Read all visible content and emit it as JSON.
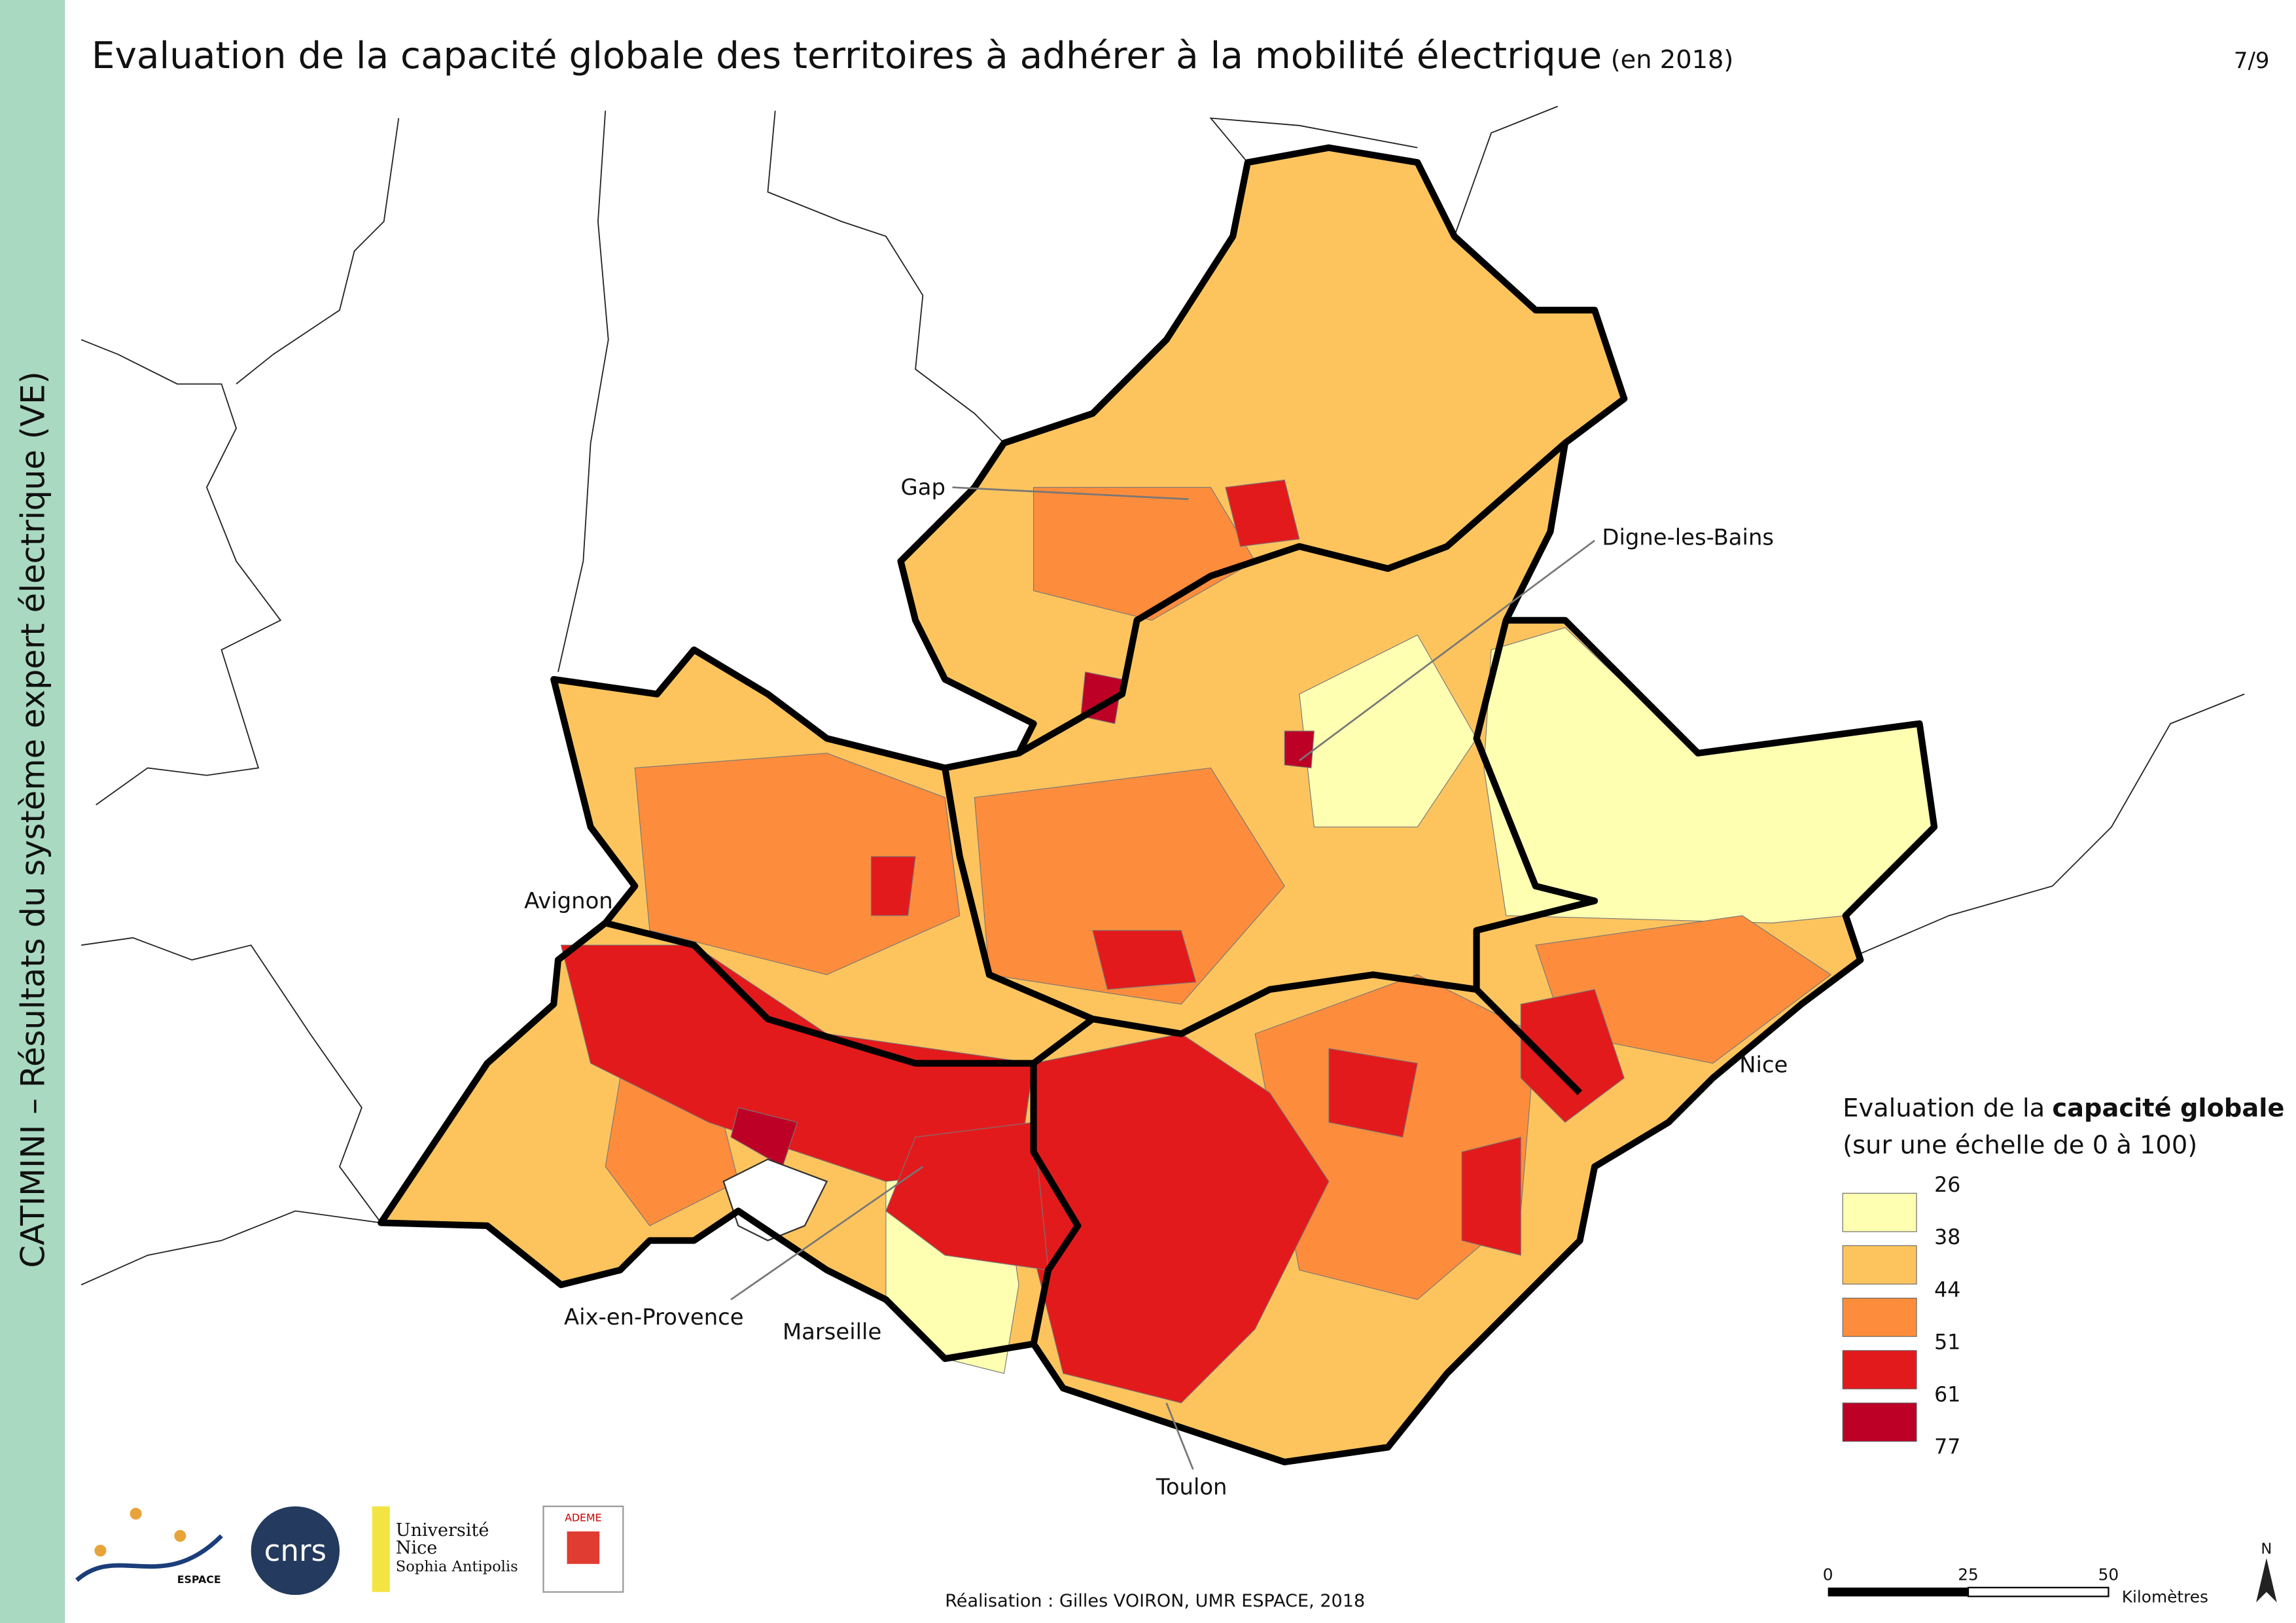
{
  "header": {
    "title": "Evaluation de la capacité globale des territoires à adhérer à la mobilité électrique",
    "subtitle": "(en 2018)",
    "page": "7/9"
  },
  "sidebar": {
    "text": "CATIMINI – Résultats du système expert électrique (VE)"
  },
  "cities": [
    "Gap",
    "Digne-les-Bains",
    "Avignon",
    "Nice",
    "Aix-en-Provence",
    "Marseille",
    "Toulon"
  ],
  "legend": {
    "title_prefix": "Evaluation de la",
    "title_bold": "capacité globale",
    "subtitle": "(sur une échelle de 0 à 100)",
    "breaks": [
      "26",
      "38",
      "44",
      "51",
      "61",
      "77"
    ],
    "colors": [
      "#ffffb2",
      "#fdc45e",
      "#fd8d3c",
      "#e31a1c",
      "#bd0026"
    ]
  },
  "scale": {
    "ticks": [
      "0",
      "25",
      "50"
    ],
    "unit": "Kilomètres"
  },
  "north": "N",
  "credit": "Réalisation : Gilles VOIRON, UMR ESPACE, 2018",
  "logos": {
    "espace": "ESPACE",
    "cnrs": "cnrs",
    "uns": [
      "Université",
      "Nice",
      "Sophia Antipolis"
    ],
    "ademe": "ADEME"
  }
}
